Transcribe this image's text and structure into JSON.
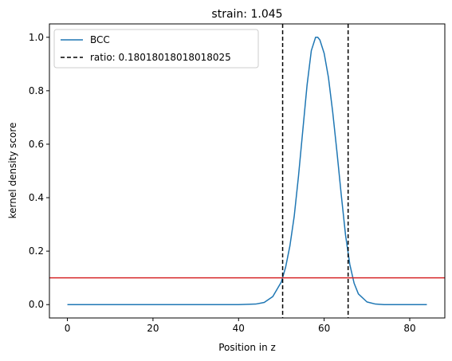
{
  "chart_data": {
    "type": "line",
    "title": "strain: 1.045",
    "xlabel": "Position in z",
    "ylabel": "kernel density score",
    "xlim": [
      -4.2,
      88.2
    ],
    "ylim": [
      -0.05,
      1.05
    ],
    "xticks": [
      0,
      20,
      40,
      60,
      80
    ],
    "yticks": [
      0.0,
      0.2,
      0.4,
      0.6,
      0.8,
      1.0
    ],
    "xtick_labels": [
      "0",
      "20",
      "40",
      "60",
      "80"
    ],
    "ytick_labels": [
      "0.0",
      "0.2",
      "0.4",
      "0.6",
      "0.8",
      "1.0"
    ],
    "grid": false,
    "legend_position": "upper-left",
    "series": [
      {
        "name": "BCC",
        "color": "#1f77b4",
        "style": "solid",
        "x": [
          0,
          10,
          20,
          30,
          40,
          44,
          46,
          48,
          50,
          51,
          52,
          53,
          54,
          55,
          56,
          57,
          58,
          58.5,
          59,
          60,
          61,
          62,
          63,
          64,
          65,
          66,
          67,
          68,
          70,
          72,
          74,
          76,
          80,
          84
        ],
        "y": [
          0,
          0,
          0,
          0,
          0,
          0.002,
          0.008,
          0.03,
          0.085,
          0.14,
          0.22,
          0.33,
          0.48,
          0.65,
          0.82,
          0.95,
          1.0,
          1.0,
          0.99,
          0.94,
          0.85,
          0.72,
          0.57,
          0.41,
          0.26,
          0.15,
          0.08,
          0.04,
          0.01,
          0.002,
          0.0,
          0.0,
          0.0,
          0.0
        ]
      }
    ],
    "vertical_lines": {
      "name": "ratio: 0.18018018018018025",
      "color": "#000000",
      "style": "dashed",
      "x": [
        50.3,
        65.6
      ]
    },
    "threshold_line": {
      "color": "#d62728",
      "y": 0.1
    }
  }
}
